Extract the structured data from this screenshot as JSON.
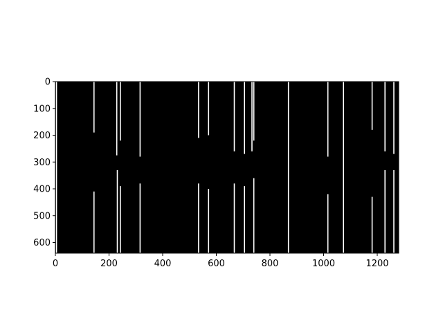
{
  "chart_data": {
    "type": "heatmap",
    "title": "",
    "xlabel": "",
    "ylabel": "",
    "xlim": [
      0,
      1280
    ],
    "ylim": [
      640,
      0
    ],
    "x_ticks": [
      0,
      200,
      400,
      600,
      800,
      1000,
      1200
    ],
    "y_ticks": [
      0,
      100,
      200,
      300,
      400,
      500,
      600
    ],
    "x_tick_labels": [
      "0",
      "200",
      "400",
      "600",
      "800",
      "1000",
      "1200"
    ],
    "y_tick_labels": [
      "0",
      "100",
      "200",
      "300",
      "400",
      "500",
      "600"
    ],
    "colormap": "binary (black/white)",
    "background_value_color": "#000000",
    "feature_color": "#ffffff",
    "white_streaks": [
      {
        "x": 4,
        "y_start": 0,
        "y_end": 640
      },
      {
        "x": 144,
        "y_start": 0,
        "y_end": 190
      },
      {
        "x": 144,
        "y_start": 410,
        "y_end": 640
      },
      {
        "x": 229,
        "y_start": 0,
        "y_end": 275
      },
      {
        "x": 231,
        "y_start": 330,
        "y_end": 640
      },
      {
        "x": 242,
        "y_start": 0,
        "y_end": 220
      },
      {
        "x": 242,
        "y_start": 390,
        "y_end": 640
      },
      {
        "x": 316,
        "y_start": 0,
        "y_end": 280
      },
      {
        "x": 316,
        "y_start": 380,
        "y_end": 640
      },
      {
        "x": 534,
        "y_start": 0,
        "y_end": 210
      },
      {
        "x": 534,
        "y_start": 380,
        "y_end": 640
      },
      {
        "x": 571,
        "y_start": 0,
        "y_end": 200
      },
      {
        "x": 571,
        "y_start": 400,
        "y_end": 640
      },
      {
        "x": 667,
        "y_start": 0,
        "y_end": 260
      },
      {
        "x": 667,
        "y_start": 380,
        "y_end": 640
      },
      {
        "x": 705,
        "y_start": 0,
        "y_end": 270
      },
      {
        "x": 705,
        "y_start": 390,
        "y_end": 640
      },
      {
        "x": 733,
        "y_start": 0,
        "y_end": 260
      },
      {
        "x": 740,
        "y_start": 0,
        "y_end": 220
      },
      {
        "x": 740,
        "y_start": 360,
        "y_end": 640
      },
      {
        "x": 869,
        "y_start": 0,
        "y_end": 640
      },
      {
        "x": 1016,
        "y_start": 0,
        "y_end": 280
      },
      {
        "x": 1016,
        "y_start": 420,
        "y_end": 640
      },
      {
        "x": 1074,
        "y_start": 0,
        "y_end": 640
      },
      {
        "x": 1181,
        "y_start": 0,
        "y_end": 180
      },
      {
        "x": 1181,
        "y_start": 430,
        "y_end": 640
      },
      {
        "x": 1229,
        "y_start": 0,
        "y_end": 260
      },
      {
        "x": 1229,
        "y_start": 330,
        "y_end": 640
      },
      {
        "x": 1262,
        "y_start": 0,
        "y_end": 270
      },
      {
        "x": 1262,
        "y_start": 330,
        "y_end": 640
      }
    ]
  }
}
